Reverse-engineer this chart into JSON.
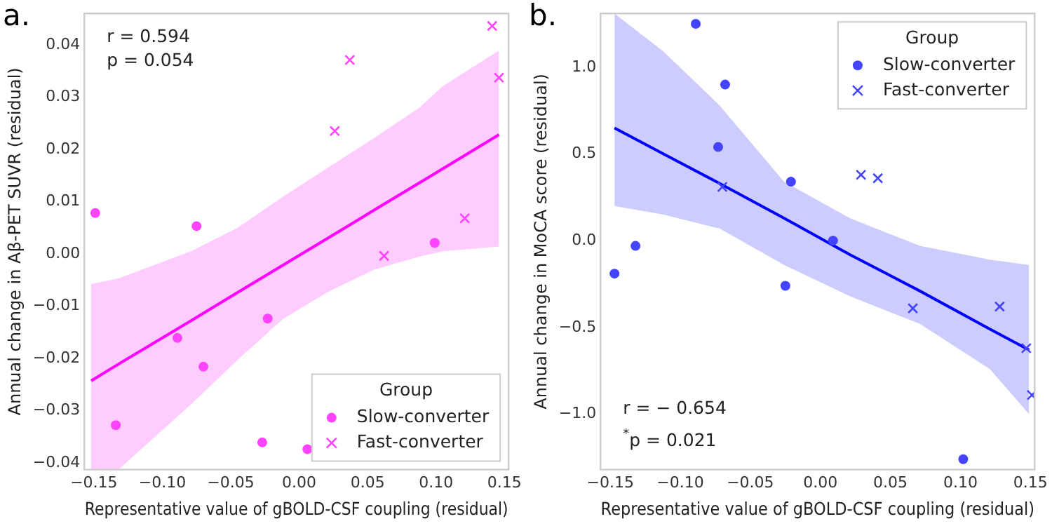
{
  "chart_data": [
    {
      "type": "scatter",
      "title": "a.",
      "xlabel": "Representative value of gBOLD-CSF coupling (residual)",
      "ylabel": "Annual change in Aβ-PET SUVR (residual)",
      "legend_title": "Group",
      "legend": "bottom right",
      "grid": false,
      "annotations": [
        "r = 0.594",
        "p = 0.054"
      ],
      "xlim": [
        -0.157,
        0.153
      ],
      "ylim": [
        -0.0413,
        0.046
      ],
      "xticks": [
        {
          "value": -0.15,
          "label": "−0.15"
        },
        {
          "value": -0.1,
          "label": "−0.10"
        },
        {
          "value": -0.05,
          "label": "−0.05"
        },
        {
          "value": 0,
          "label": "0.00"
        },
        {
          "value": 0.05,
          "label": "0.05"
        },
        {
          "value": 0.1,
          "label": "0.10"
        },
        {
          "value": 0.15,
          "label": "0.15"
        }
      ],
      "yticks": [
        {
          "value": -0.04,
          "label": "−0.04"
        },
        {
          "value": -0.03,
          "label": "−0.03"
        },
        {
          "value": -0.02,
          "label": "−0.02"
        },
        {
          "value": -0.01,
          "label": "−0.01"
        },
        {
          "value": 0,
          "label": "0.00"
        },
        {
          "value": 0.01,
          "label": "0.01"
        },
        {
          "value": 0.02,
          "label": "0.02"
        },
        {
          "value": 0.03,
          "label": "0.03"
        },
        {
          "value": 0.04,
          "label": "0.04"
        }
      ],
      "series": [
        {
          "name": "Slow-converter",
          "marker": "circle",
          "color": "#ff44ff",
          "x": [
            -0.149,
            -0.075,
            0.099,
            -0.134,
            -0.089,
            -0.07,
            -0.023,
            -0.027,
            0.006
          ],
          "values": [
            0.0078,
            0.0053,
            0.0021,
            -0.0328,
            -0.0161,
            -0.0216,
            -0.0124,
            -0.0361,
            -0.0374
          ]
        },
        {
          "name": "Fast-converter",
          "marker": "cross",
          "color": "#ff44ff",
          "x": [
            0.141,
            0.146,
            0.037,
            0.026,
            0.121,
            0.062
          ],
          "values": [
            0.0436,
            0.0337,
            0.0371,
            0.0235,
            0.0068,
            -0.0004
          ]
        },
        {
          "type": "line",
          "marker": "none",
          "line_style": "solid",
          "color": "#ff00ff",
          "x": [
            -0.152,
            -0.132,
            -0.079,
            -0.045,
            -0.012,
            0.021,
            0.055,
            0.088,
            0.105,
            0.146
          ],
          "values": [
            -0.0243,
            -0.0211,
            -0.0128,
            -0.0074,
            -0.0022,
            0.003,
            0.0084,
            0.0136,
            0.0163,
            0.0228
          ],
          "lower": [
            -0.0413,
            -0.0413,
            -0.0288,
            -0.0203,
            -0.0125,
            -0.0073,
            -0.003,
            -0.0005,
            0.0005,
            0.0014
          ],
          "upper": [
            -0.0058,
            -0.0047,
            0.0005,
            0.005,
            0.0109,
            0.0165,
            0.0222,
            0.028,
            0.0321,
            0.0389
          ]
        }
      ]
    },
    {
      "type": "scatter",
      "title": "b.",
      "xlabel": "Representative value of gBOLD-CSF coupling (residual)",
      "ylabel": "Annual change in MoCA score (residual)",
      "legend_title": "Group",
      "legend": "top right",
      "grid": false,
      "annotations": [
        "r = − 0.654",
        "$^{*}$p = 0.021"
      ],
      "xlim": [
        -0.157,
        0.153
      ],
      "ylim": [
        -1.32,
        1.31
      ],
      "xticks": [
        {
          "value": -0.15,
          "label": "−0.15"
        },
        {
          "value": -0.1,
          "label": "−0.10"
        },
        {
          "value": -0.05,
          "label": "−0.05"
        },
        {
          "value": 0,
          "label": "0.00"
        },
        {
          "value": 0.05,
          "label": "0.05"
        },
        {
          "value": 0.1,
          "label": "0.10"
        },
        {
          "value": 0.15,
          "label": "0.15"
        }
      ],
      "yticks": [
        {
          "value": -1,
          "label": "−1.0"
        },
        {
          "value": -0.5,
          "label": "−0.5"
        },
        {
          "value": 0,
          "label": "0.0"
        },
        {
          "value": 0.5,
          "label": "0.5"
        },
        {
          "value": 1,
          "label": "1.0"
        }
      ],
      "series": [
        {
          "name": "Slow-converter",
          "marker": "circle",
          "color": "#4444ff",
          "x": [
            -0.089,
            -0.068,
            -0.073,
            -0.021,
            0.009,
            -0.132,
            -0.147,
            -0.025,
            0.102
          ],
          "values": [
            1.25,
            0.9,
            0.54,
            0.34,
            0.0,
            -0.03,
            -0.19,
            -0.26,
            -1.26
          ]
        },
        {
          "name": "Fast-converter",
          "marker": "cross",
          "color": "#4444ff",
          "x": [
            -0.07,
            0.029,
            0.041,
            0.066,
            0.128,
            0.147,
            0.151
          ],
          "values": [
            0.31,
            0.38,
            0.36,
            -0.39,
            -0.38,
            -0.62,
            -0.89
          ]
        },
        {
          "type": "line",
          "marker": "none",
          "line_style": "solid",
          "color": "#0000ff",
          "x": [
            -0.147,
            -0.112,
            -0.072,
            -0.026,
            0.021,
            0.071,
            0.121,
            0.149
          ],
          "values": [
            0.65,
            0.5,
            0.33,
            0.13,
            -0.08,
            -0.29,
            -0.51,
            -0.63
          ],
          "lower": [
            0.2,
            0.15,
            0.07,
            -0.14,
            -0.32,
            -0.48,
            -0.74,
            -1.0
          ],
          "upper": [
            1.31,
            1.09,
            0.78,
            0.34,
            0.13,
            -0.03,
            -0.11,
            -0.14
          ]
        }
      ]
    }
  ]
}
